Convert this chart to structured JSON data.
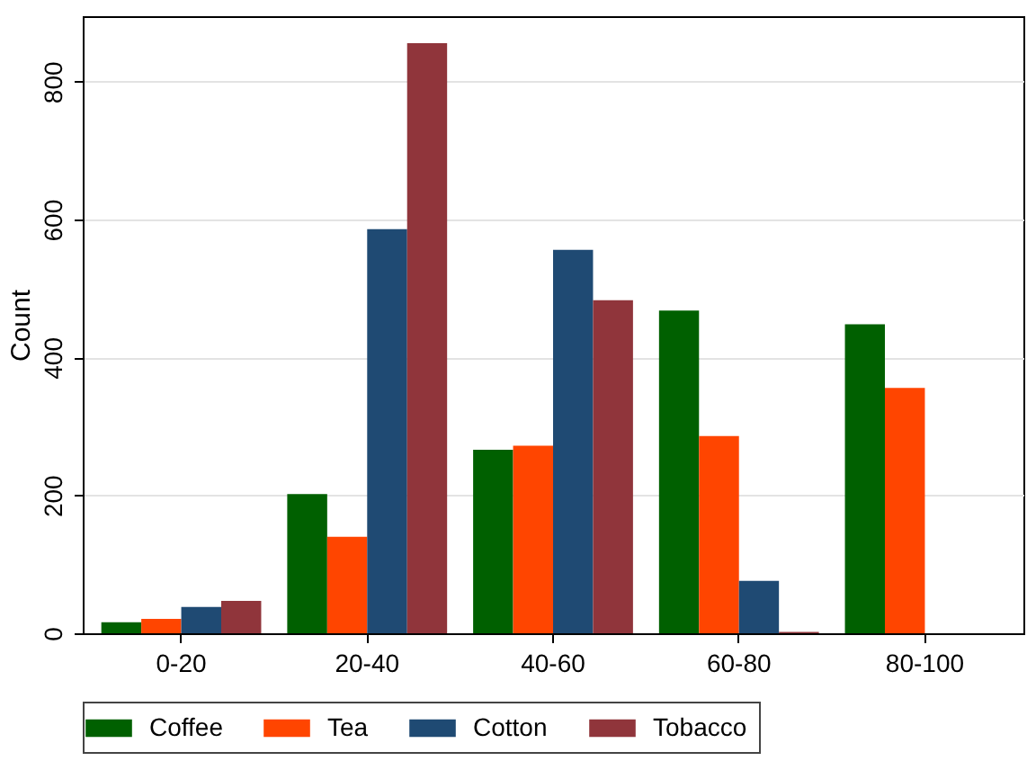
{
  "chart_data": {
    "type": "bar",
    "ylabel": "Count",
    "categories": [
      "0-20",
      "20-40",
      "40-60",
      "60-80",
      "80-100"
    ],
    "series": [
      {
        "name": "Coffee",
        "color": "#006000",
        "values": [
          16,
          202,
          266,
          468,
          448
        ]
      },
      {
        "name": "Tea",
        "color": "#ff4500",
        "values": [
          21,
          140,
          272,
          286,
          356
        ]
      },
      {
        "name": "Cotton",
        "color": "#1f4a73",
        "values": [
          38,
          586,
          556,
          76,
          null
        ]
      },
      {
        "name": "Tobacco",
        "color": "#90353b",
        "values": [
          47,
          856,
          483,
          2,
          null
        ]
      }
    ],
    "ylim": [
      0,
      895
    ],
    "yticks": [
      0,
      200,
      400,
      600,
      800
    ],
    "grid": "y",
    "legend": "bottom"
  }
}
